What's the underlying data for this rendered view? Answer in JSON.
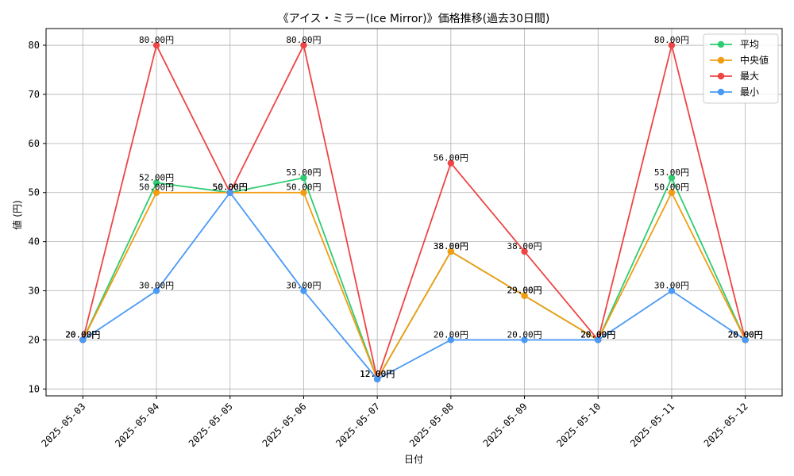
{
  "chart_data": {
    "type": "line",
    "title": "《アイス・ミラー(Ice Mirror)》価格推移(過去30日間)",
    "xlabel": "日付",
    "ylabel": "値 (円)",
    "ylim": [
      8.6,
      83.4
    ],
    "yticks": [
      10,
      20,
      30,
      40,
      50,
      60,
      70,
      80
    ],
    "grid": true,
    "legend_position": "top-right",
    "unit_suffix": "円",
    "categories": [
      "2025-05-03",
      "2025-05-04",
      "2025-05-05",
      "2025-05-06",
      "2025-05-07",
      "2025-05-08",
      "2025-05-09",
      "2025-05-10",
      "2025-05-11",
      "2025-05-12"
    ],
    "series": [
      {
        "name": "平均",
        "color": "#2ecc71",
        "values": [
          20,
          52,
          50,
          53,
          12,
          38,
          29,
          20,
          53,
          20
        ]
      },
      {
        "name": "中央値",
        "color": "#f39c12",
        "values": [
          20,
          50,
          50,
          50,
          12,
          38,
          29,
          20,
          50,
          20
        ]
      },
      {
        "name": "最大",
        "color": "#ef4444",
        "values": [
          20,
          80,
          50,
          80,
          12,
          56,
          38,
          20,
          80,
          20
        ]
      },
      {
        "name": "最小",
        "color": "#4a9af5",
        "values": [
          20,
          30,
          50,
          30,
          12,
          20,
          20,
          20,
          30,
          20
        ]
      }
    ]
  }
}
